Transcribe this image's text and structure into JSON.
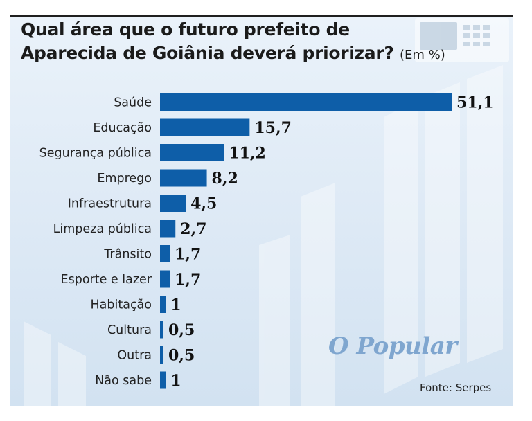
{
  "chart_data": {
    "type": "bar",
    "orientation": "horizontal",
    "title_line1": "Qual área que o futuro prefeito de",
    "title_line2": "Aparecida de Goiânia deverá priorizar?",
    "unit": "(Em %)",
    "categories": [
      "Saúde",
      "Educação",
      "Segurança pública",
      "Emprego",
      "Infraestrutura",
      "Limpeza pública",
      "Trânsito",
      "Esporte e lazer",
      "Habitação",
      "Cultura",
      "Outra",
      "Não sabe"
    ],
    "values": [
      51.1,
      15.7,
      11.2,
      8.2,
      4.5,
      2.7,
      1.7,
      1.7,
      1,
      0.5,
      0.5,
      1
    ],
    "value_labels": [
      "51,1",
      "15,7",
      "11,2",
      "8,2",
      "4,5",
      "2,7",
      "1,7",
      "1,7",
      "1",
      "0,5",
      "0,5",
      "1"
    ],
    "xlim": [
      0,
      51.1
    ],
    "bar_color": "#0e5ea8"
  },
  "brand": "O Popular",
  "source": "Fonte: Serpes"
}
